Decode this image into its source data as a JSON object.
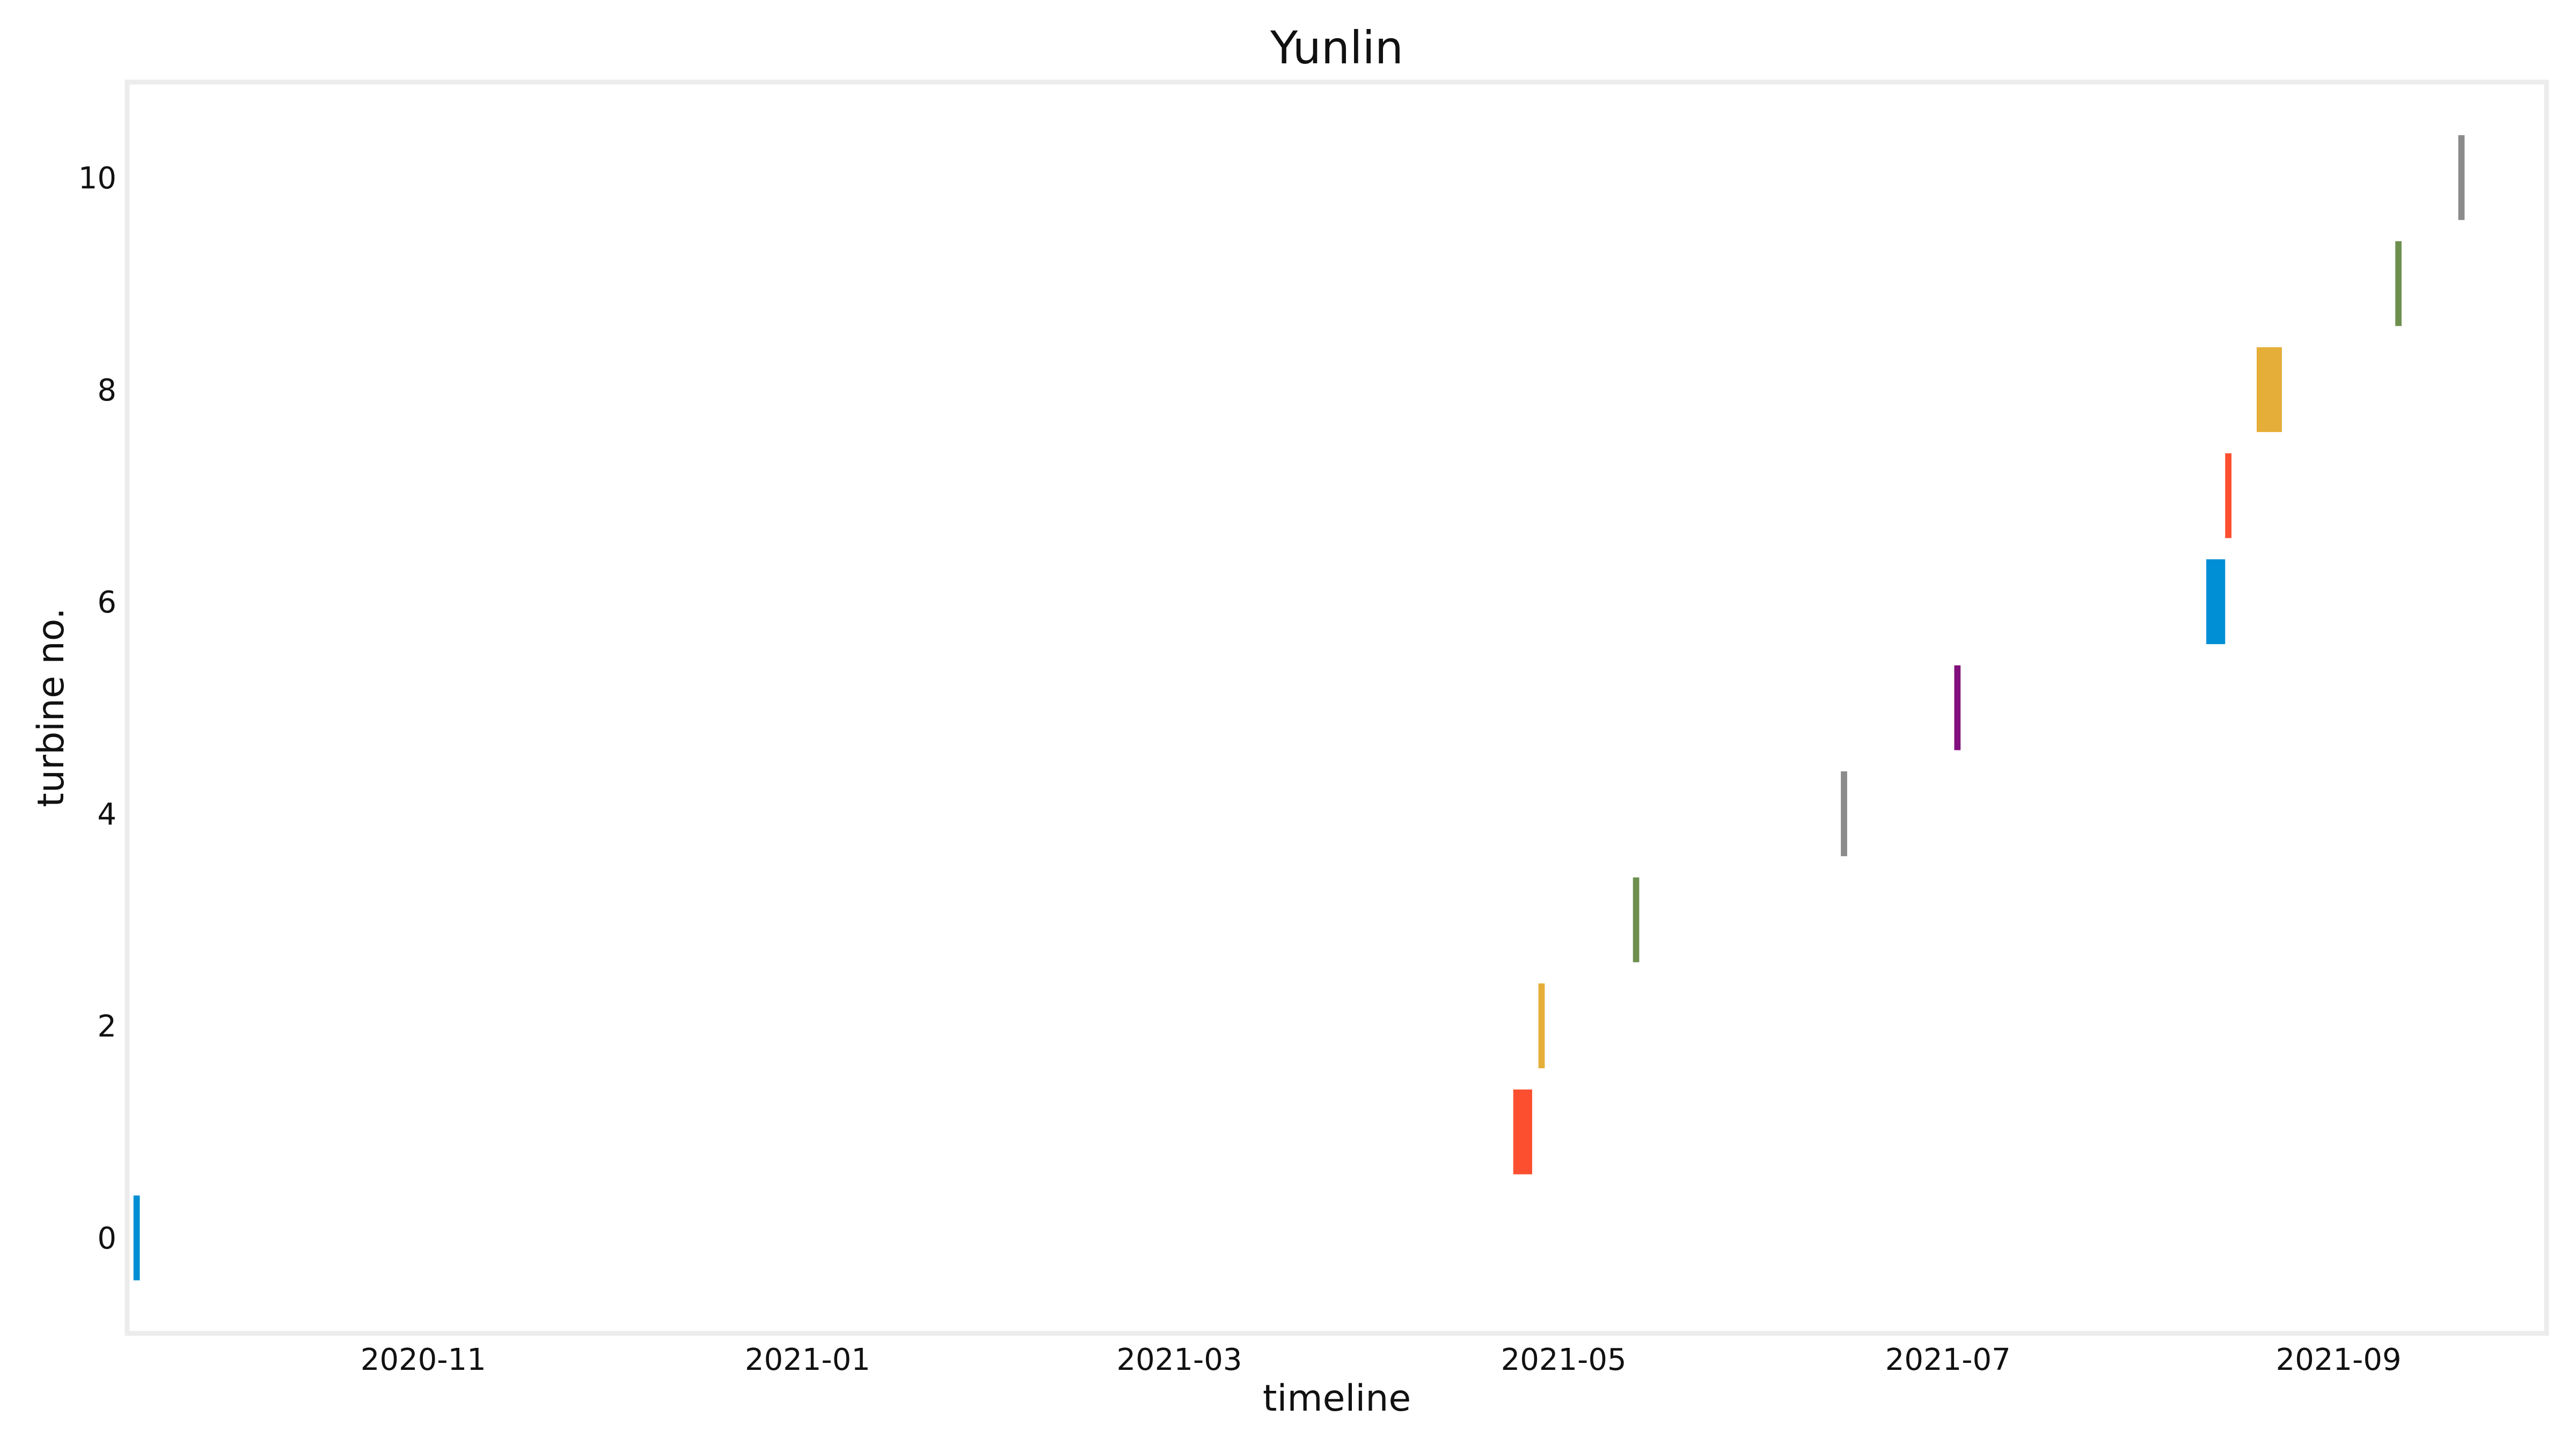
{
  "chart_data": {
    "type": "bar",
    "orientation": "horizontal-timeline",
    "title": "Yunlin",
    "xlabel": "timeline",
    "ylabel": "turbine no.",
    "x_is_date": true,
    "xlim": [
      "2020-09-15",
      "2021-10-04"
    ],
    "ylim": [
      -0.9,
      10.9
    ],
    "x_ticks": [
      "2020-11",
      "2021-01",
      "2021-03",
      "2021-05",
      "2021-07",
      "2021-09"
    ],
    "y_ticks": [
      0,
      2,
      4,
      6,
      8,
      10
    ],
    "grid": false,
    "legend": "none",
    "frame_color": "#ececec",
    "bars": [
      {
        "turbine": 0,
        "start": "2020-09-16",
        "end": "2020-09-17",
        "color": "#008fd5"
      },
      {
        "turbine": 1,
        "start": "2021-04-23",
        "end": "2021-04-26",
        "color": "#fc4f30"
      },
      {
        "turbine": 2,
        "start": "2021-04-27",
        "end": "2021-04-28",
        "color": "#e5ae38"
      },
      {
        "turbine": 3,
        "start": "2021-05-12",
        "end": "2021-05-13",
        "color": "#6d904f"
      },
      {
        "turbine": 4,
        "start": "2021-06-14",
        "end": "2021-06-15",
        "color": "#8b8b8b"
      },
      {
        "turbine": 5,
        "start": "2021-07-02",
        "end": "2021-07-03",
        "color": "#810f7c"
      },
      {
        "turbine": 6,
        "start": "2021-08-11",
        "end": "2021-08-14",
        "color": "#008fd5"
      },
      {
        "turbine": 7,
        "start": "2021-08-14",
        "end": "2021-08-15",
        "color": "#fc4f30"
      },
      {
        "turbine": 8,
        "start": "2021-08-19",
        "end": "2021-08-23",
        "color": "#e5ae38"
      },
      {
        "turbine": 9,
        "start": "2021-09-10",
        "end": "2021-09-11",
        "color": "#6d904f"
      },
      {
        "turbine": 10,
        "start": "2021-09-20",
        "end": "2021-09-21",
        "color": "#8b8b8b"
      }
    ]
  }
}
